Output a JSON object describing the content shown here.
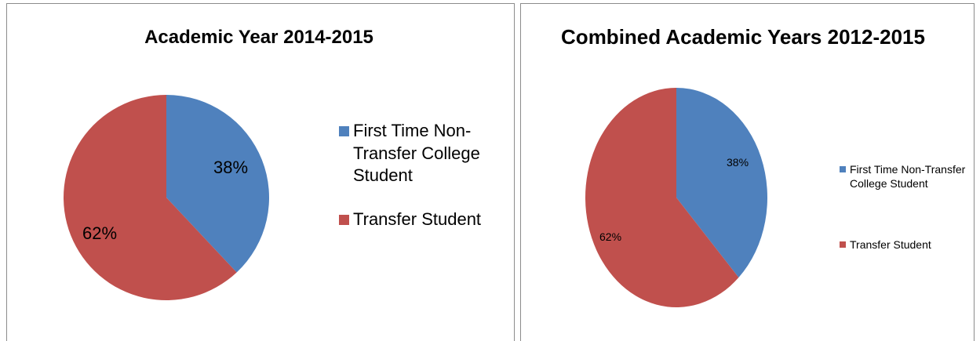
{
  "chart_data": [
    {
      "type": "pie",
      "title": "Academic Year 2014-2015",
      "categories": [
        "First Time Non-Transfer College Student",
        "Transfer Student"
      ],
      "values": [
        38,
        62
      ],
      "value_labels": [
        "38%",
        "62%"
      ],
      "colors": [
        "#4f81bd",
        "#c0504d"
      ]
    },
    {
      "type": "pie",
      "title": "Combined Academic Years 2012-2015",
      "categories": [
        "First Time Non-Transfer College Student",
        "Transfer Student"
      ],
      "values": [
        38,
        62
      ],
      "value_labels": [
        "38%",
        "62%"
      ],
      "colors": [
        "#4f81bd",
        "#c0504d"
      ]
    }
  ]
}
